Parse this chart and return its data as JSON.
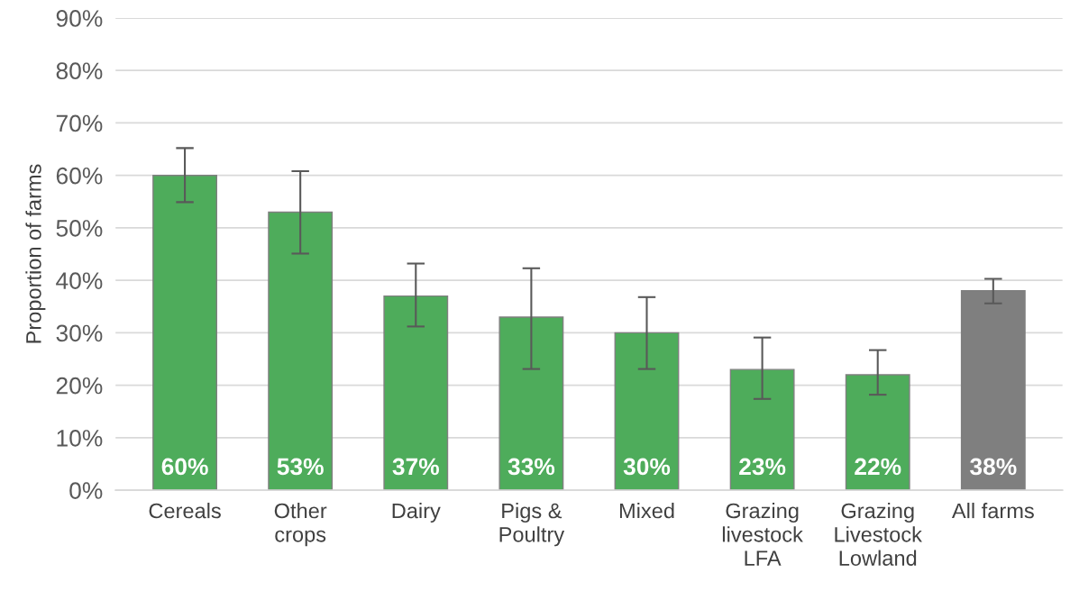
{
  "chart_data": {
    "type": "bar",
    "ylabel": "Proportion of farms",
    "categories": [
      "Cereals",
      "Other\ncrops",
      "Dairy",
      "Pigs &\nPoultry",
      "Mixed",
      "Grazing\nlivestock\nLFA",
      "Grazing\nLivestock\nLowland",
      "All farms"
    ],
    "values": [
      60,
      53,
      37,
      33,
      30,
      23,
      22,
      38
    ],
    "colors": [
      "#4eac5b",
      "#4eac5b",
      "#4eac5b",
      "#4eac5b",
      "#4eac5b",
      "#4eac5b",
      "#4eac5b",
      "#7f7f7f"
    ],
    "errors": [
      [
        54.9,
        65.2
      ],
      [
        45.1,
        60.8
      ],
      [
        31.2,
        43.2
      ],
      [
        23.1,
        42.3
      ],
      [
        23.1,
        36.8
      ],
      [
        17.4,
        29.1
      ],
      [
        18.2,
        26.7
      ],
      [
        35.6,
        40.3
      ]
    ],
    "value_labels": [
      "60%",
      "53%",
      "37%",
      "33%",
      "30%",
      "23%",
      "22%",
      "38%"
    ],
    "ylim": [
      0,
      90
    ],
    "yticks": [
      {
        "value": 0,
        "label": "0%"
      },
      {
        "value": 10,
        "label": "10%"
      },
      {
        "value": 20,
        "label": "20%"
      },
      {
        "value": 30,
        "label": "30%"
      },
      {
        "value": 40,
        "label": "40%"
      },
      {
        "value": 50,
        "label": "50%"
      },
      {
        "value": 60,
        "label": "60%"
      },
      {
        "value": 70,
        "label": "70%"
      },
      {
        "value": 80,
        "label": "80%"
      },
      {
        "value": 90,
        "label": "90%"
      }
    ],
    "grid": "y"
  }
}
